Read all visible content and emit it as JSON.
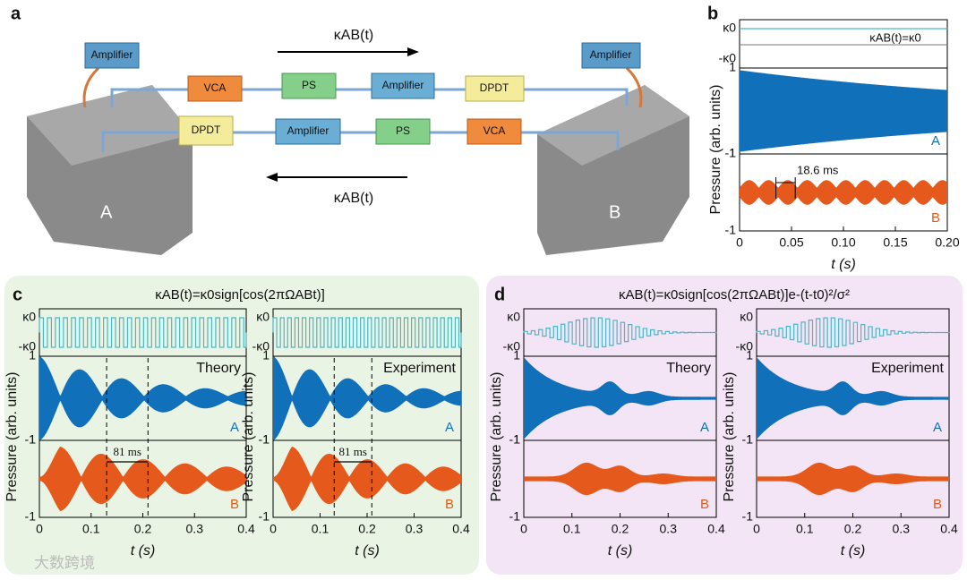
{
  "panel_a": {
    "label": "a",
    "top_arrow": "κAB(t)",
    "bottom_arrow": "κAB(t)",
    "site_a": "A",
    "site_b": "B",
    "top_row": [
      "Amplifier",
      "VCA",
      "PS",
      "Amplifier",
      "DPDT",
      "Amplifier"
    ],
    "bottom_row": [
      "DPDT",
      "Amplifier",
      "PS",
      "VCA"
    ]
  },
  "panel_b": {
    "label": "b",
    "kappa_high": "κ0",
    "kappa_low": "-κ0",
    "equation": "κAB(t)=κ0",
    "y_label": "Pressure (arb. units)",
    "x_label": "t (s)",
    "trace_a": "A",
    "trace_b": "B",
    "period": "18.6 ms",
    "period_marks": [
      0.035,
      0.0536
    ],
    "xlim": [
      0,
      0.2
    ],
    "xticks": [
      0,
      0.05,
      {
        "value": 0.1,
        "label": "0.10"
      },
      0.15,
      {
        "value": 0.2,
        "label": "0.20"
      }
    ],
    "ylim": [
      -1,
      1
    ],
    "yticks": [
      1,
      -1
    ]
  },
  "panel_c": {
    "label": "c",
    "title": "κAB(t)=κ0sign[cos(2πΩABt)]",
    "kappa_high": "κ0",
    "kappa_low": "-κ0",
    "plots": [
      "Theory",
      "Experiment"
    ],
    "trace_a": "A",
    "trace_b": "B",
    "interval": "81 ms",
    "dashed_lines": [
      0.13,
      0.21
    ],
    "y_label": "Pressure (arb. units)",
    "x_label": "t (s)",
    "xlim": [
      0,
      0.4
    ],
    "xticks": [
      0,
      0.1,
      0.2,
      0.3,
      0.4
    ],
    "ylim": [
      -1,
      1
    ],
    "yticks": [
      1,
      -1
    ]
  },
  "panel_d": {
    "label": "d",
    "title": "κAB(t)=κ0sign[cos(2πΩABt)]e-(t-t0)²/σ²",
    "kappa_high": "κ0",
    "kappa_low": "-κ0",
    "plots": [
      "Theory",
      "Experiment"
    ],
    "trace_a": "A",
    "trace_b": "B",
    "y_label": "Pressure (arb. units)",
    "x_label": "t (s)",
    "xlim": [
      0,
      0.4
    ],
    "xticks": [
      0,
      0.1,
      0.2,
      0.3,
      0.4
    ],
    "ylim": [
      -1,
      1
    ],
    "yticks": [
      1,
      -1
    ]
  },
  "watermark": "大数跨境"
}
